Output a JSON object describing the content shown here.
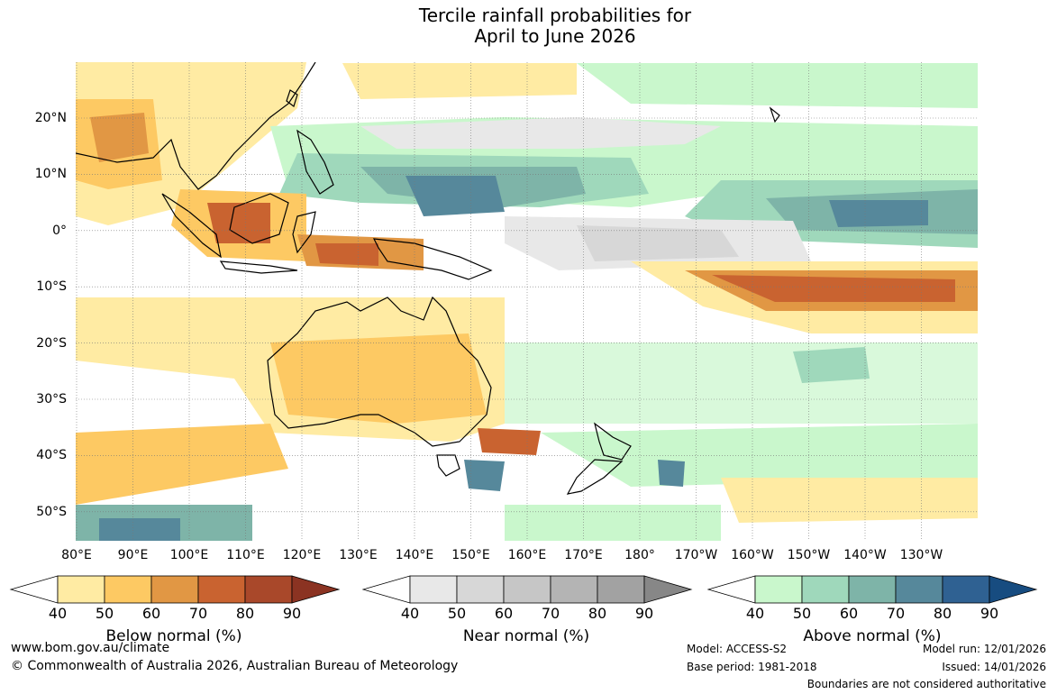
{
  "title_line1": "Tercile rainfall probabilities for",
  "title_line2": "April to June 2026",
  "lon_labels": [
    "80°E",
    "90°E",
    "100°E",
    "110°E",
    "120°E",
    "130°E",
    "140°E",
    "150°E",
    "160°E",
    "170°E",
    "180°",
    "170°W",
    "160°W",
    "150°W",
    "140°W",
    "130°W"
  ],
  "lat_labels": [
    "20°N",
    "10°N",
    "0°",
    "10°S",
    "20°S",
    "30°S",
    "40°S",
    "50°S"
  ],
  "colorbars": {
    "below": {
      "label": "Below normal (%)",
      "ticks": [
        "40",
        "50",
        "60",
        "70",
        "80",
        "90"
      ],
      "colors": [
        "#ffffff",
        "#ffeba3",
        "#fdc963",
        "#e19744",
        "#c96330",
        "#a9482a",
        "#8b3322"
      ]
    },
    "near": {
      "label": "Near normal (%)",
      "ticks": [
        "40",
        "50",
        "60",
        "70",
        "80",
        "90"
      ],
      "colors": [
        "#ffffff",
        "#e8e8e8",
        "#d7d7d7",
        "#c6c6c6",
        "#b4b4b4",
        "#a2a2a2",
        "#878787"
      ]
    },
    "above": {
      "label": "Above normal (%)",
      "ticks": [
        "40",
        "50",
        "60",
        "70",
        "80",
        "90"
      ],
      "colors": [
        "#ffffff",
        "#c9f7cc",
        "#9fd8bb",
        "#7eb4a8",
        "#56889b",
        "#2f6192",
        "#174c80"
      ]
    }
  },
  "footer": {
    "website": "www.bom.gov.au/climate",
    "copyright": "© Commonwealth of Australia 2026, Australian Bureau of Meteorology",
    "model": "Model: ACCESS-S2",
    "base_period": "Base period: 1981-2018",
    "model_run": "Model run: 12/01/2026",
    "issued": "Issued: 14/01/2026",
    "disclaimer": "Boundaries are not considered authoritative"
  }
}
